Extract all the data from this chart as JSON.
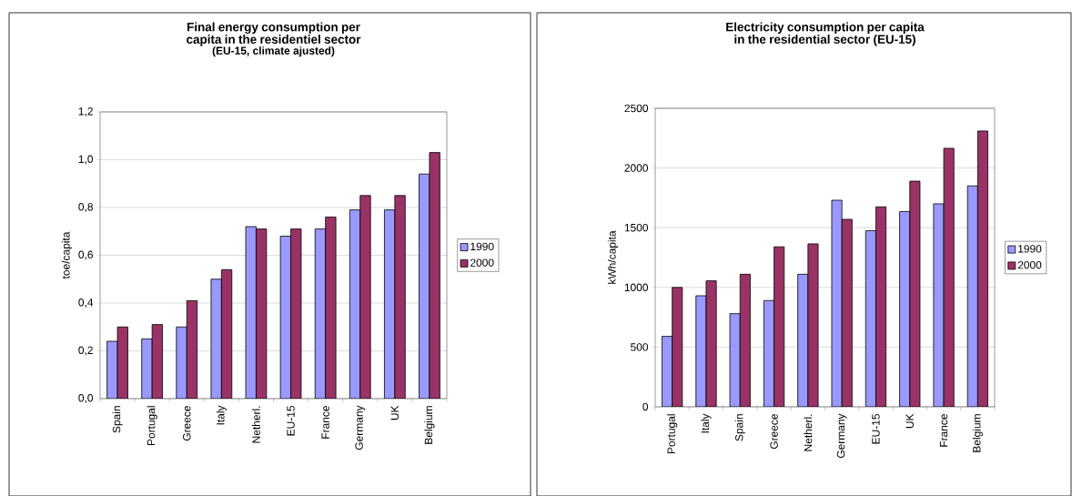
{
  "chart_data": [
    {
      "type": "bar",
      "title": "Final energy consumption per capita in the residentiel sector",
      "subtitle": "(EU-15, climate ajusted)",
      "ylabel": "toe/capita",
      "categories": [
        "Spain",
        "Portugal",
        "Greece",
        "Italy",
        "Netherl.",
        "EU-15",
        "France",
        "Germany",
        "UK",
        "Belgium"
      ],
      "series": [
        {
          "name": "1990",
          "color": "#9999ff",
          "values": [
            0.24,
            0.25,
            0.3,
            0.5,
            0.72,
            0.68,
            0.71,
            0.79,
            0.79,
            0.94
          ]
        },
        {
          "name": "2000",
          "color": "#993366",
          "values": [
            0.3,
            0.31,
            0.41,
            0.54,
            0.71,
            0.71,
            0.76,
            0.85,
            0.85,
            1.03
          ]
        }
      ],
      "ylim": [
        0,
        1.2
      ],
      "yticks": [
        {
          "value": 0,
          "label": "0,0"
        },
        {
          "value": 0.2,
          "label": "0,2"
        },
        {
          "value": 0.4,
          "label": "0,4"
        },
        {
          "value": 0.6,
          "label": "0,6"
        },
        {
          "value": 0.8,
          "label": "0,8"
        },
        {
          "value": 1.0,
          "label": "1,0"
        },
        {
          "value": 1.2,
          "label": "1,2"
        }
      ],
      "grid": "y",
      "legend": "right"
    },
    {
      "type": "bar",
      "title": "Electricity consumption per capita in the residential sector (EU-15)",
      "ylabel": "kWh/capita",
      "categories": [
        "Portugal",
        "Italy",
        "Spain",
        "Greece",
        "Netherl.",
        "Germany",
        "EU-15",
        "UK",
        "France",
        "Belgium"
      ],
      "series": [
        {
          "name": "1990",
          "color": "#9999ff",
          "values": [
            590,
            930,
            780,
            890,
            1110,
            1730,
            1475,
            1635,
            1700,
            1850
          ]
        },
        {
          "name": "2000",
          "color": "#993366",
          "values": [
            1000,
            1055,
            1110,
            1340,
            1365,
            1570,
            1675,
            1890,
            2165,
            2310
          ]
        }
      ],
      "ylim": [
        0,
        2500
      ],
      "yticks": [
        0,
        500,
        1000,
        1500,
        2000,
        2500
      ],
      "grid": "y",
      "legend": "right"
    }
  ]
}
